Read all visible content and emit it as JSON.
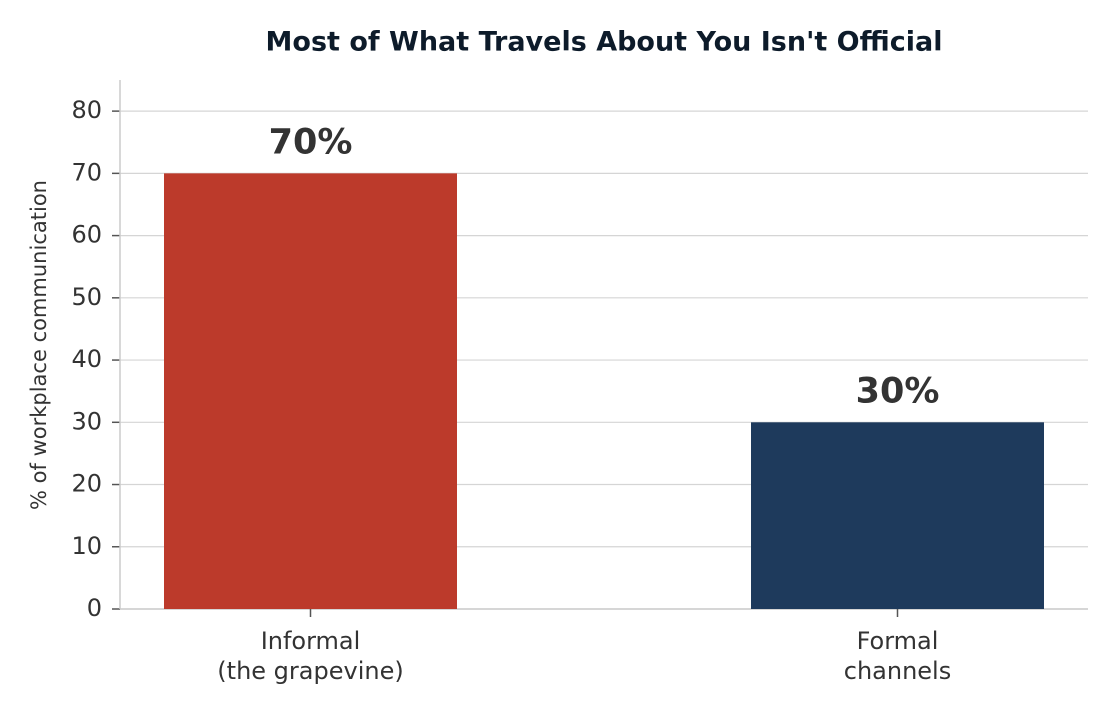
{
  "chart_data": {
    "type": "bar",
    "title": "Most of What Travels About You Isn't Official",
    "y_label": "% of workplace communication",
    "categories": [
      "Informal\n(the grapevine)",
      "Formal\nchannels"
    ],
    "values": [
      70,
      30
    ],
    "value_labels": [
      "70%",
      "30%"
    ],
    "colors": [
      "#bc3a2b",
      "#1e3a5c"
    ],
    "ylim": [
      0,
      85
    ],
    "yticks": [
      0,
      10,
      20,
      30,
      40,
      50,
      60,
      70,
      80
    ],
    "grid": true
  }
}
